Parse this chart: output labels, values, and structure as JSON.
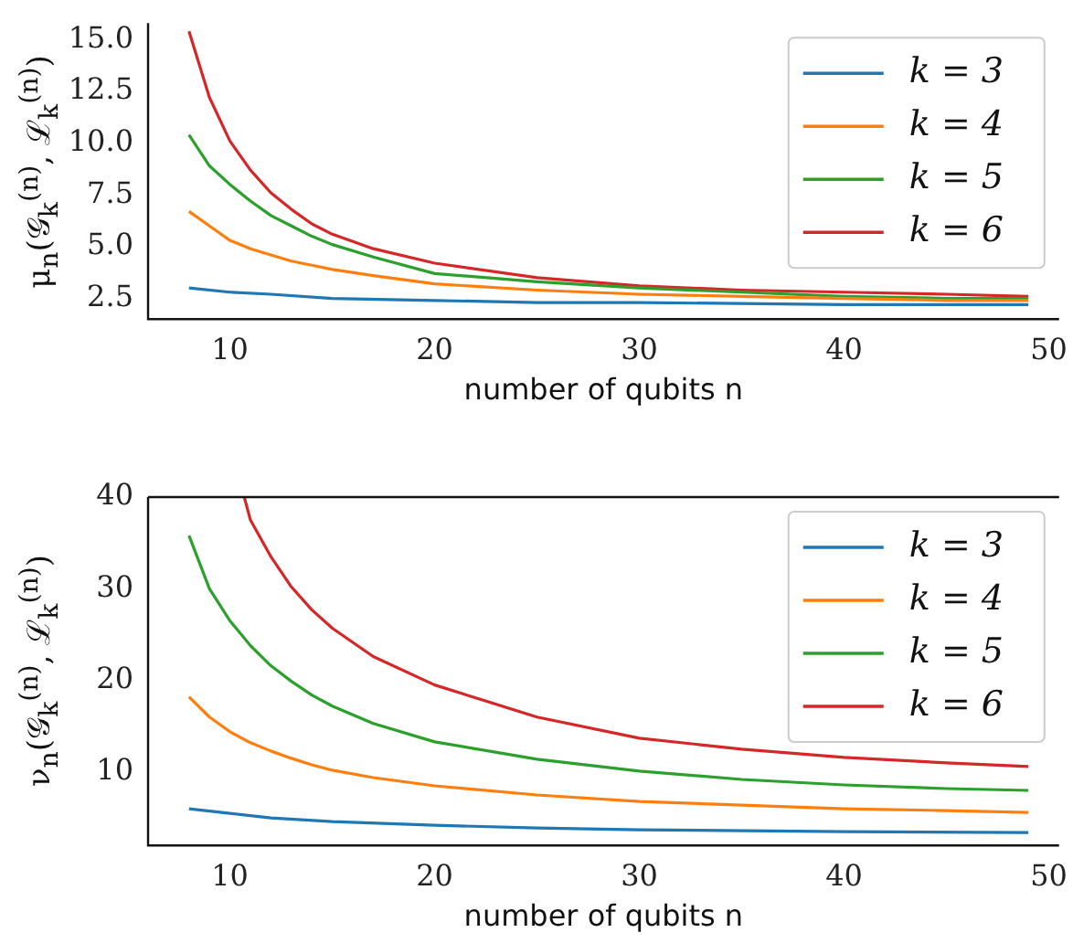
{
  "chart_data": [
    {
      "type": "line",
      "xlabel": "number of qubits n",
      "ylabel": "μ$_{n}$(𝒢$_{k}$$^{(n)}$, ℒ$_{k}$$^{(n)}$)",
      "xlim": [
        6,
        50.5
      ],
      "ylim": [
        1.5,
        15.8
      ],
      "xticks": [
        10,
        20,
        30,
        40,
        50
      ],
      "yticks": [
        {
          "value": 2.5,
          "label": "2.5"
        },
        {
          "value": 5,
          "label": "5.0"
        },
        {
          "value": 7.5,
          "label": "7.5"
        },
        {
          "value": 10,
          "label": "10.0"
        },
        {
          "value": 12.5,
          "label": "12.5"
        },
        {
          "value": 15,
          "label": "15.0"
        }
      ],
      "grid": false,
      "legend": "top right",
      "marker": "none",
      "line_style": "solid",
      "series": [
        {
          "name": "k = 3",
          "color": "#1f77b4",
          "x": [
            8,
            10,
            12,
            15,
            20,
            25,
            30,
            40,
            49
          ],
          "values": [
            3.0,
            2.8,
            2.7,
            2.5,
            2.4,
            2.3,
            2.3,
            2.2,
            2.2
          ]
        },
        {
          "name": "k = 4",
          "color": "#ff7f0e",
          "x": [
            8,
            9,
            10,
            11,
            12,
            13,
            14,
            15,
            17,
            20,
            25,
            30,
            35,
            40,
            45,
            49
          ],
          "values": [
            6.7,
            6.0,
            5.3,
            4.9,
            4.6,
            4.3,
            4.1,
            3.9,
            3.6,
            3.2,
            2.9,
            2.7,
            2.6,
            2.5,
            2.4,
            2.4
          ]
        },
        {
          "name": "k = 5",
          "color": "#2ca02c",
          "x": [
            8,
            9,
            10,
            11,
            12,
            13,
            14,
            15,
            17,
            20,
            25,
            30,
            35,
            40,
            45,
            49
          ],
          "values": [
            10.4,
            8.9,
            8.0,
            7.2,
            6.5,
            6.0,
            5.5,
            5.1,
            4.5,
            3.7,
            3.3,
            3.0,
            2.8,
            2.6,
            2.5,
            2.5
          ]
        },
        {
          "name": "k = 6",
          "color": "#d62728",
          "x": [
            8,
            9,
            10,
            11,
            12,
            13,
            14,
            15,
            17,
            20,
            25,
            30,
            35,
            40,
            45,
            49
          ],
          "values": [
            15.4,
            12.2,
            10.1,
            8.7,
            7.6,
            6.8,
            6.1,
            5.6,
            4.9,
            4.2,
            3.5,
            3.1,
            2.9,
            2.8,
            2.7,
            2.6
          ]
        }
      ]
    },
    {
      "type": "line",
      "xlabel": "number of qubits n",
      "ylabel": "ν$_{n}$(𝒢$_{k}$$^{(n)}$, ℒ$_{k}$$^{(n)}$)",
      "xlim": [
        6,
        50.5
      ],
      "ylim": [
        2,
        40
      ],
      "xticks": [
        10,
        20,
        30,
        40,
        50
      ],
      "yticks": [
        10,
        20,
        30,
        40
      ],
      "grid": false,
      "legend": "top right",
      "marker": "none",
      "line_style": "solid",
      "series": [
        {
          "name": "k = 3",
          "color": "#1f77b4",
          "x": [
            8,
            10,
            12,
            15,
            20,
            25,
            30,
            40,
            49
          ],
          "values": [
            6.0,
            5.5,
            5.0,
            4.6,
            4.2,
            3.9,
            3.7,
            3.5,
            3.4
          ]
        },
        {
          "name": "k = 4",
          "color": "#ff7f0e",
          "x": [
            8,
            9,
            10,
            11,
            12,
            13,
            14,
            15,
            17,
            20,
            25,
            30,
            35,
            40,
            45,
            49
          ],
          "values": [
            18.2,
            16.0,
            14.4,
            13.2,
            12.3,
            11.5,
            10.8,
            10.2,
            9.4,
            8.5,
            7.5,
            6.8,
            6.4,
            6.0,
            5.8,
            5.6
          ]
        },
        {
          "name": "k = 5",
          "color": "#2ca02c",
          "x": [
            8,
            9,
            10,
            11,
            12,
            13,
            14,
            15,
            17,
            20,
            25,
            30,
            35,
            40,
            45,
            49
          ],
          "values": [
            35.8,
            30.0,
            26.5,
            23.8,
            21.6,
            19.9,
            18.4,
            17.2,
            15.3,
            13.3,
            11.4,
            10.1,
            9.2,
            8.6,
            8.2,
            8.0
          ]
        },
        {
          "name": "k = 6",
          "color": "#d62728",
          "x": [
            10.7,
            11,
            12,
            13,
            14,
            15,
            17,
            20,
            25,
            30,
            35,
            40,
            45,
            49
          ],
          "values": [
            40,
            37.5,
            33.5,
            30.2,
            27.7,
            25.7,
            22.6,
            19.5,
            16.0,
            13.7,
            12.5,
            11.6,
            11.0,
            10.6
          ]
        }
      ]
    }
  ]
}
